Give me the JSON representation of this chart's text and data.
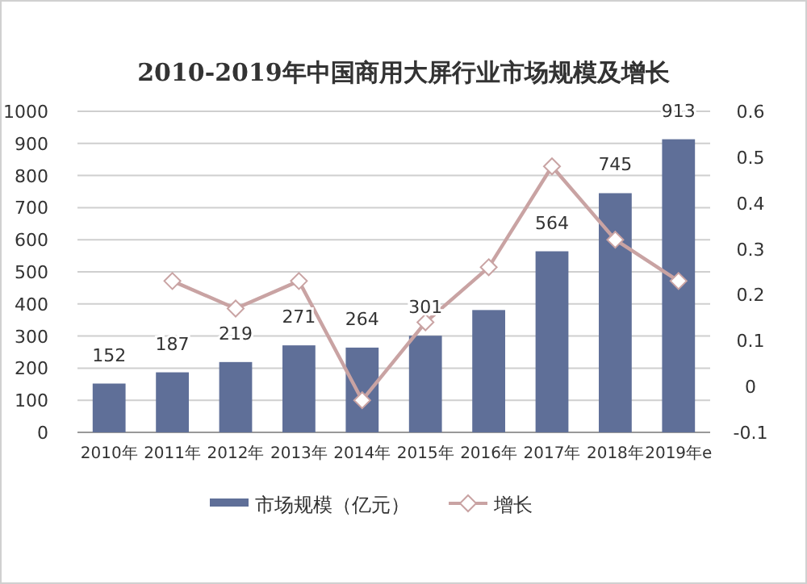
{
  "chart_data": {
    "type": "bar",
    "title": "2010-2019年中国商用大屏行业市场规模及增长",
    "categories": [
      "2010年",
      "2011年",
      "2012年",
      "2013年",
      "2014年",
      "2015年",
      "2016年",
      "2017年",
      "2018年",
      "2019年e"
    ],
    "series": [
      {
        "name": "市场规模（亿元）",
        "color": "#5f6f98",
        "values": [
          152,
          187,
          219,
          271,
          264,
          301,
          381,
          564,
          745,
          913
        ],
        "value_labels": [
          "152",
          "187",
          "219",
          "271",
          "264",
          "301",
          null,
          "564",
          "745",
          "913"
        ]
      },
      {
        "name": "增长",
        "type": "line",
        "axis": "y2",
        "color": "#c9a3a3",
        "marker": "diamond",
        "values": [
          null,
          0.23,
          0.17,
          0.23,
          -0.03,
          0.14,
          0.26,
          0.48,
          0.32,
          0.23
        ]
      }
    ],
    "ylim": [
      0,
      1000
    ],
    "yticks": [
      0,
      100,
      200,
      300,
      400,
      500,
      600,
      700,
      800,
      900,
      1000
    ],
    "y2lim": [
      -0.1,
      0.6
    ],
    "y2ticks": [
      -0.1,
      {
        "value": 0,
        "label": "0"
      },
      0.1,
      0.2,
      0.3,
      0.4,
      0.5,
      0.6
    ],
    "grid": "y",
    "legend": "bottom"
  }
}
